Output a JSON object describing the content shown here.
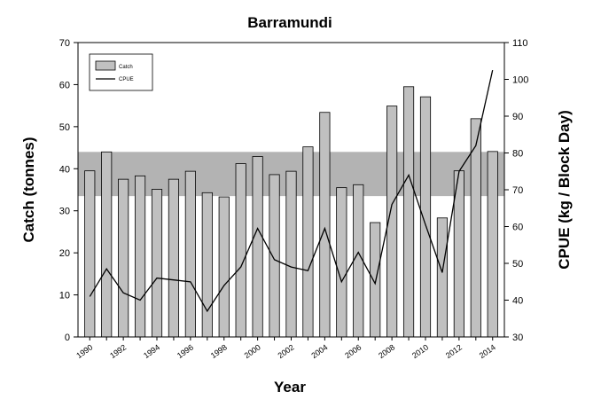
{
  "chart_data": {
    "type": "bar",
    "title": "Barramundi",
    "xlabel": "Year",
    "ylabel": "Catch (tonnes)",
    "y2label": "CPUE (kg / Block Day)",
    "x": [
      1990,
      1991,
      1992,
      1993,
      1994,
      1995,
      1996,
      1997,
      1998,
      1999,
      2000,
      2001,
      2002,
      2003,
      2004,
      2005,
      2006,
      2007,
      2008,
      2009,
      2010,
      2011,
      2012,
      2013,
      2014
    ],
    "x_tick_labels": [
      "1990",
      "1992",
      "1994",
      "1996",
      "1998",
      "2000",
      "2002",
      "2004",
      "2006",
      "2008",
      "2010",
      "2012",
      "2014"
    ],
    "ylim": [
      0,
      70
    ],
    "y_ticks": [
      0,
      10,
      20,
      30,
      40,
      50,
      60,
      70
    ],
    "y2lim": [
      30,
      110
    ],
    "y2_ticks": [
      30,
      40,
      50,
      60,
      70,
      80,
      90,
      100,
      110
    ],
    "band": {
      "lower": 33.5,
      "upper": 44,
      "color": "#b3b3b3"
    },
    "series": [
      {
        "name": "Catch",
        "kind": "bar",
        "axis": "left",
        "color": "#c0c0c0",
        "values": [
          39.5,
          44,
          37.5,
          38.3,
          35.1,
          37.5,
          39.4,
          34.3,
          33.3,
          41.2,
          42.9,
          38.6,
          39.4,
          45.2,
          53.4,
          35.5,
          36.2,
          27.2,
          54.9,
          59.5,
          57.1,
          28.3,
          39.5,
          51.9,
          44.1
        ]
      },
      {
        "name": "CPUE",
        "kind": "line",
        "axis": "right",
        "color": "#000000",
        "values": [
          41,
          48.5,
          42,
          40,
          46,
          45.5,
          45,
          37,
          44,
          49,
          59.5,
          51,
          49,
          48,
          59.5,
          45,
          53,
          44.5,
          66,
          74,
          60.5,
          47.5,
          75,
          82,
          102.5
        ]
      }
    ],
    "legend": {
      "position": "top-left",
      "entries": [
        "Catch",
        "CPUE"
      ]
    },
    "grid": false
  }
}
